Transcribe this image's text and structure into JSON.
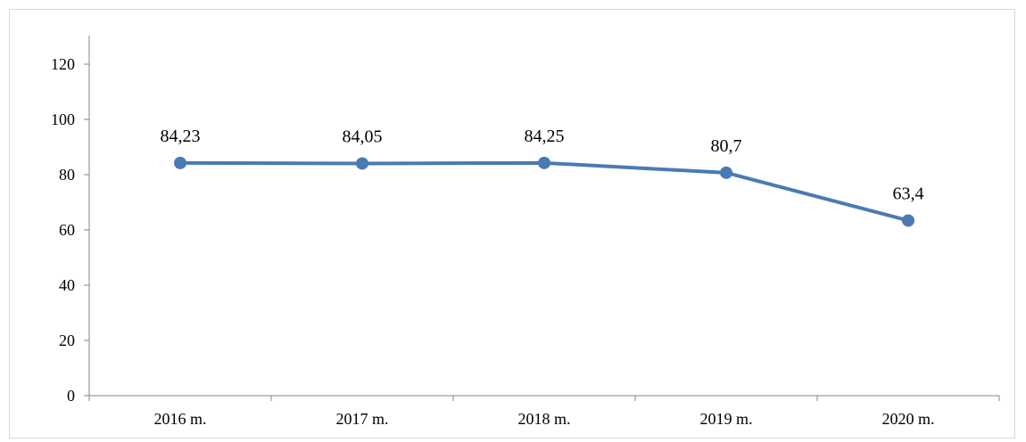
{
  "chart_data": {
    "type": "line",
    "categories": [
      "2016 m.",
      "2017 m.",
      "2018 m.",
      "2019 m.",
      "2020 m."
    ],
    "series": [
      {
        "values": [
          84.23,
          84.05,
          84.25,
          80.7,
          63.4
        ],
        "data_labels": [
          "84,23",
          "84,05",
          "84,25",
          "80,7",
          "63,4"
        ],
        "color": "#4a7ab5"
      }
    ],
    "y_ticks": [
      "0",
      "20",
      "40",
      "60",
      "80",
      "100",
      "120"
    ],
    "ylim": [
      0,
      120
    ],
    "title": "",
    "xlabel": "",
    "ylabel": "",
    "grid": false,
    "legend": "none"
  }
}
